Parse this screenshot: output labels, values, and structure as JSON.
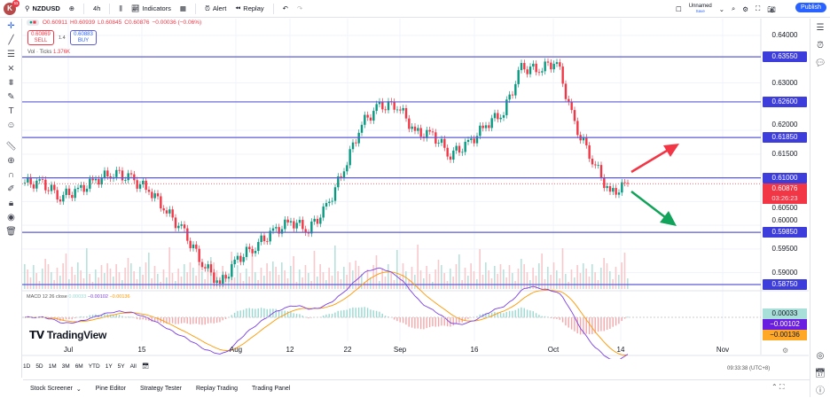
{
  "topbar": {
    "avatar": "K",
    "badge": "11",
    "symbol": "NZDUSD",
    "interval": "4h",
    "indicators": "Indicators",
    "alert": "Alert",
    "replay": "Replay",
    "layout_name": "Unnamed",
    "save": "Save",
    "publish": "Publish"
  },
  "legend": {
    "o": "O0.60911",
    "h": "H0.60939",
    "l": "L0.60845",
    "c": "C0.60876",
    "chg": "−0.00036 (−0.06%)",
    "sell_price": "0.60869",
    "sell": "SELL",
    "spread": "1.4",
    "buy_price": "0.60883",
    "buy": "BUY",
    "vol_label": "Vol · Ticks",
    "vol_value": "1.376K"
  },
  "macd": {
    "label": "MACD 12 26 close",
    "hist": "0.00033",
    "macd": "−0.00102",
    "signal": "−0.00136"
  },
  "price_axis": {
    "ticks": [
      "0.64000",
      "0.63000",
      "0.62000",
      "0.61500",
      "0.60500",
      "0.60000",
      "0.59500",
      "0.59000"
    ],
    "levels": [
      "0.63550",
      "0.62600",
      "0.61850",
      "0.61000",
      "0.59850",
      "0.58750"
    ],
    "current_price": "0.60876",
    "countdown": "03:26:23",
    "macd_values": [
      "0.00033",
      "−0.00102",
      "−0.00136"
    ]
  },
  "chart_data": {
    "type": "candlestick",
    "symbol": "NZDUSD",
    "interval": "4h",
    "closes": [
      0.609,
      0.6087,
      0.6062,
      0.6072,
      0.6095,
      0.6112,
      0.6096,
      0.6075,
      0.603,
      0.5982,
      0.5922,
      0.5875,
      0.5928,
      0.5958,
      0.5985,
      0.6008,
      0.5992,
      0.6035,
      0.612,
      0.6215,
      0.625,
      0.6255,
      0.6195,
      0.619,
      0.615,
      0.617,
      0.6212,
      0.624,
      0.633,
      0.633,
      0.6345,
      0.621,
      0.614,
      0.6065,
      0.6088
    ],
    "levels": [
      0.6355,
      0.626,
      0.6185,
      0.61,
      0.5985,
      0.5875
    ],
    "ylim": [
      0.5875,
      0.64
    ],
    "x_ticks": [
      "Jul",
      "15",
      "Aug",
      "12",
      "22",
      "Sep",
      "16",
      "Oct",
      "14",
      "Nov"
    ]
  },
  "colors": {
    "up": "#089981",
    "down": "#f23645",
    "level": "#5b5bd6",
    "level_label": "#3d3ddb",
    "macd": "#7b3fe4",
    "signal": "#ff9800",
    "hist_pos": "#26a69a",
    "hist_neg": "#ef5350"
  },
  "ranges": [
    "1D",
    "5D",
    "1M",
    "3M",
    "6M",
    "YTD",
    "1Y",
    "5Y",
    "All"
  ],
  "time": "09:33:38 (UTC+8)",
  "bottom": {
    "tabs": [
      "Stock Screener",
      "Pine Editor",
      "Strategy Tester",
      "Replay Trading",
      "Trading Panel"
    ]
  },
  "watermark": "TradingView"
}
